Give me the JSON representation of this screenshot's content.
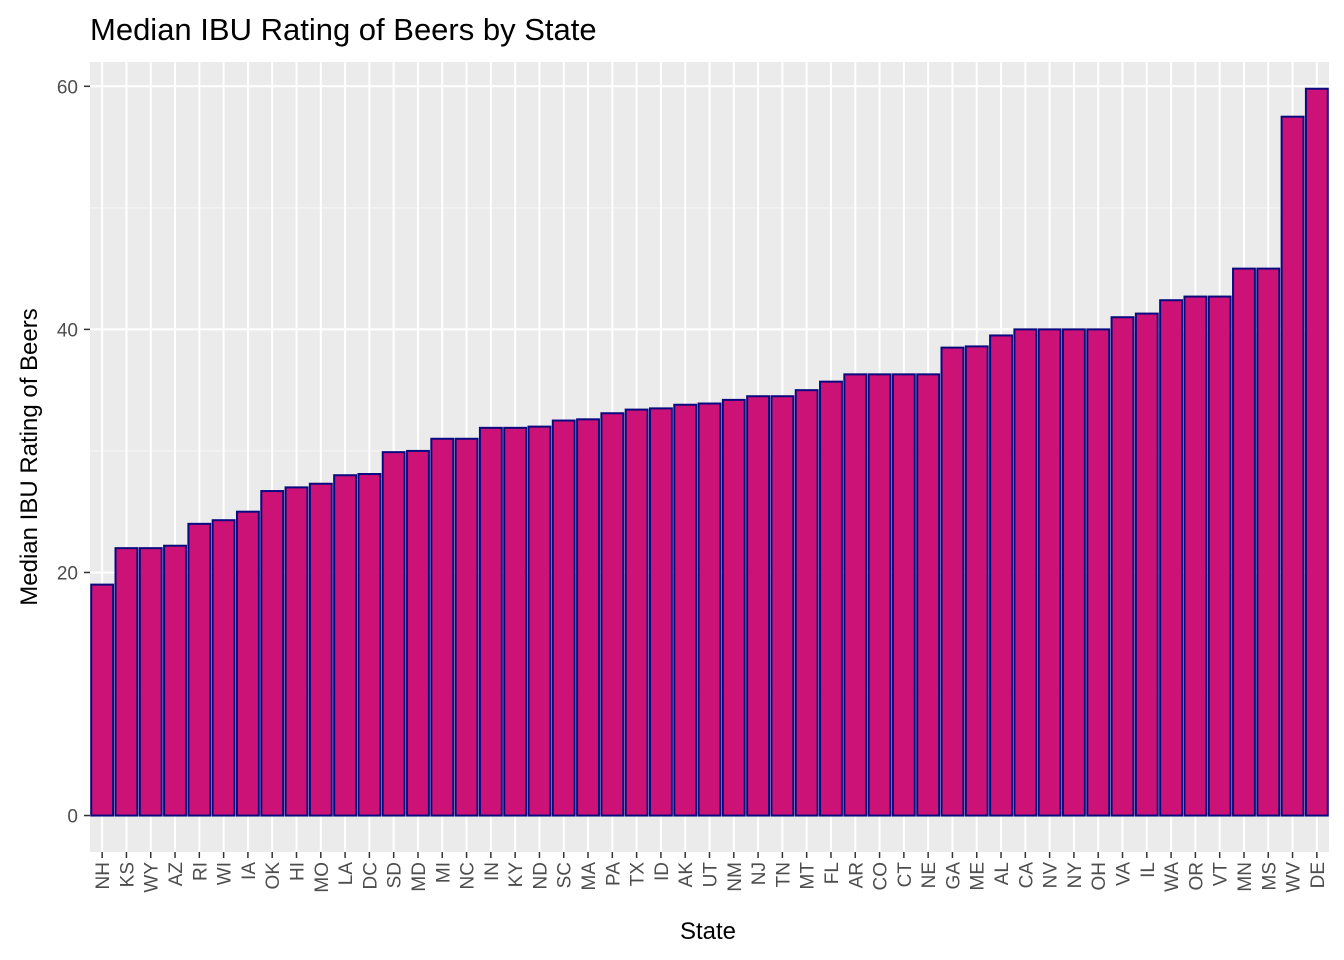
{
  "chart_data": {
    "type": "bar",
    "title": "Median IBU Rating of Beers by State",
    "xlabel": "State",
    "ylabel": "Median IBU Rating of Beers",
    "ylim": [
      -3,
      62
    ],
    "yticks": [
      0,
      20,
      40,
      60
    ],
    "ytick_labels": [
      "0",
      "20",
      "40",
      "60"
    ],
    "grid": true,
    "categories": [
      "NH",
      "KS",
      "WY",
      "AZ",
      "RI",
      "WI",
      "IA",
      "OK",
      "HI",
      "MO",
      "LA",
      "DC",
      "SD",
      "MD",
      "MI",
      "NC",
      "IN",
      "KY",
      "ND",
      "SC",
      "MA",
      "PA",
      "TX",
      "ID",
      "AK",
      "UT",
      "NM",
      "NJ",
      "TN",
      "MT",
      "FL",
      "AR",
      "CO",
      "CT",
      "NE",
      "GA",
      "ME",
      "AL",
      "CA",
      "NV",
      "NY",
      "OH",
      "VA",
      "IL",
      "WA",
      "OR",
      "VT",
      "MN",
      "MS",
      "WV",
      "DE"
    ],
    "values": [
      19,
      22,
      22,
      22.2,
      24,
      24.3,
      25,
      26.7,
      27,
      27.3,
      28,
      28.1,
      29.9,
      30,
      31,
      31,
      31.9,
      31.9,
      32,
      32.5,
      32.6,
      33.1,
      33.4,
      33.5,
      33.8,
      33.9,
      34.2,
      34.5,
      34.5,
      35,
      35.7,
      36.3,
      36.3,
      36.3,
      36.3,
      38.5,
      38.6,
      39.5,
      40,
      40,
      40,
      40,
      41,
      41.3,
      42.4,
      42.7,
      42.7,
      45,
      45,
      57.5,
      59.8
    ],
    "colors": {
      "bar_fill": "#CC1177",
      "bar_stroke": "#0A0A80",
      "panel": "#EBEBEB",
      "grid_major": "#FFFFFF",
      "tick": "#333333"
    }
  }
}
